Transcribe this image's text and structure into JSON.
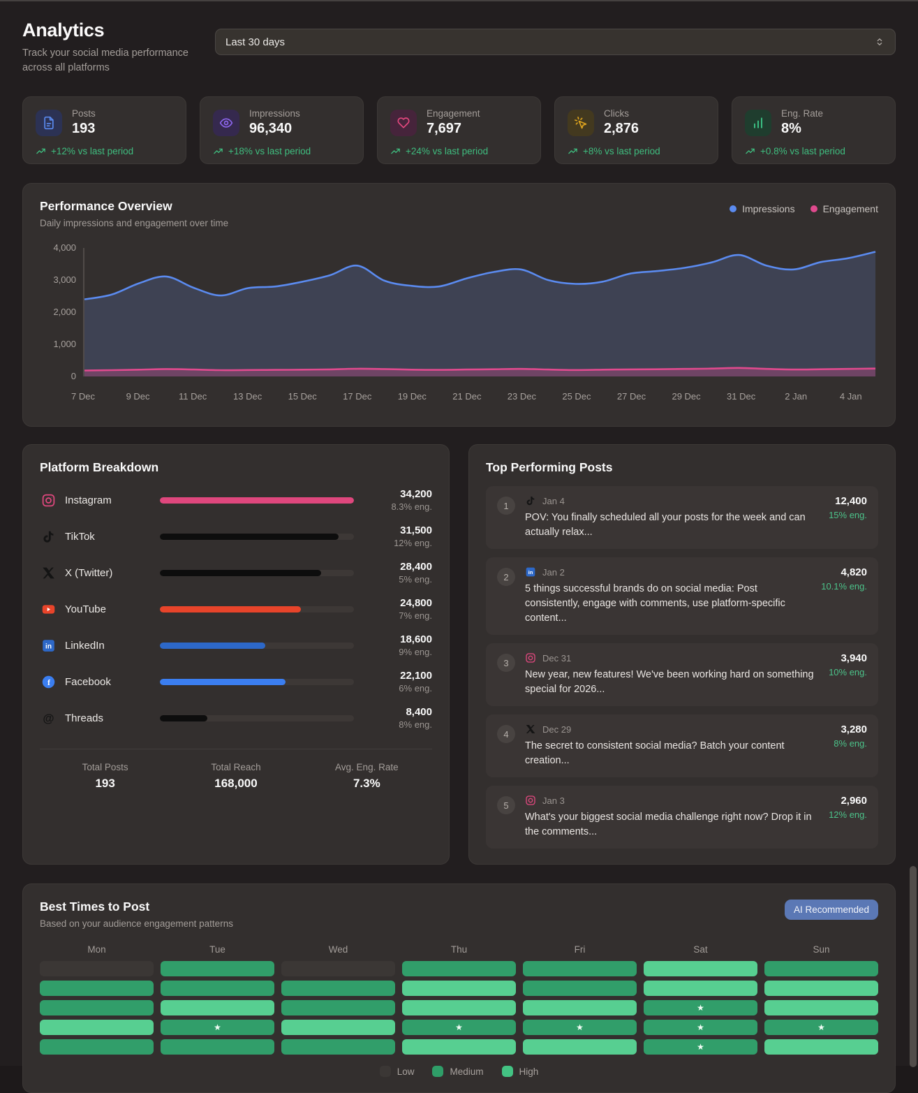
{
  "header": {
    "title": "Analytics",
    "subtitle": "Track your social media performance across all platforms",
    "range_value": "Last 30 days"
  },
  "stats": [
    {
      "label": "Posts",
      "value": "193",
      "trend": "+12% vs last period",
      "icon": "file-icon",
      "icon_color": "#5b8bf0",
      "icon_bg": "#2c3254"
    },
    {
      "label": "Impressions",
      "value": "96,340",
      "trend": "+18% vs last period",
      "icon": "eye-icon",
      "icon_color": "#8e67f0",
      "icon_bg": "#35294e"
    },
    {
      "label": "Engagement",
      "value": "7,697",
      "trend": "+24% vs last period",
      "icon": "heart-icon",
      "icon_color": "#e5487f",
      "icon_bg": "#46243b"
    },
    {
      "label": "Clicks",
      "value": "2,876",
      "trend": "+8% vs last period",
      "icon": "cursor-click-icon",
      "icon_color": "#dfa51f",
      "icon_bg": "#43391f"
    },
    {
      "label": "Eng. Rate",
      "value": "8%",
      "trend": "+0.8% vs last period",
      "icon": "bar-chart-icon",
      "icon_color": "#3bbd82",
      "icon_bg": "#1f3d2e"
    }
  ],
  "performance": {
    "title": "Performance Overview",
    "subtitle": "Daily impressions and engagement over time",
    "legend": [
      {
        "label": "Impressions",
        "color": "#5b8bf0"
      },
      {
        "label": "Engagement",
        "color": "#e04a8e"
      }
    ]
  },
  "chart_data": {
    "type": "area",
    "title": "Performance Overview",
    "x_ticks": [
      "7 Dec",
      "9 Dec",
      "11 Dec",
      "13 Dec",
      "15 Dec",
      "17 Dec",
      "19 Dec",
      "21 Dec",
      "23 Dec",
      "25 Dec",
      "27 Dec",
      "29 Dec",
      "31 Dec",
      "2 Jan",
      "4 Jan"
    ],
    "tick_every_n_points": 2,
    "y_ticks": [
      "4,000",
      "3,000",
      "2,000",
      "1,000",
      "0"
    ],
    "ylim": [
      0,
      4000
    ],
    "grid": false,
    "legend_position": "top-right",
    "series": [
      {
        "name": "Impressions",
        "color": "#5b8bf0",
        "fill": "rgba(100,130,200,0.24)",
        "values": [
          2400,
          2550,
          2900,
          3110,
          2760,
          2520,
          2750,
          2800,
          2950,
          3150,
          3450,
          2980,
          2820,
          2800,
          3050,
          3250,
          3330,
          3000,
          2880,
          2950,
          3200,
          3280,
          3380,
          3550,
          3780,
          3450,
          3330,
          3560,
          3680,
          3880
        ]
      },
      {
        "name": "Engagement",
        "color": "#e04a8e",
        "fill": "rgba(224,74,142,0.30)",
        "values": [
          185,
          195,
          210,
          230,
          215,
          195,
          200,
          205,
          210,
          220,
          240,
          230,
          210,
          205,
          215,
          225,
          235,
          215,
          200,
          210,
          220,
          225,
          235,
          245,
          265,
          235,
          215,
          225,
          235,
          245
        ]
      }
    ]
  },
  "platform_breakdown": {
    "title": "Platform Breakdown",
    "max_value": 34200,
    "rows": [
      {
        "name": "Instagram",
        "icon": "instagram-icon",
        "value": "34,200",
        "value_num": 34200,
        "eng": "8.3% eng.",
        "bar_color": "#df477d"
      },
      {
        "name": "TikTok",
        "icon": "tiktok-icon",
        "value": "31,500",
        "value_num": 31500,
        "eng": "12% eng.",
        "bar_color": "#0d0d0d"
      },
      {
        "name": "X (Twitter)",
        "icon": "x-icon",
        "value": "28,400",
        "value_num": 28400,
        "eng": "5% eng.",
        "bar_color": "#0d0d0d"
      },
      {
        "name": "YouTube",
        "icon": "youtube-icon",
        "value": "24,800",
        "value_num": 24800,
        "eng": "7% eng.",
        "bar_color": "#e8442a"
      },
      {
        "name": "LinkedIn",
        "icon": "linkedin-icon",
        "value": "18,600",
        "value_num": 18600,
        "eng": "9% eng.",
        "bar_color": "#2d68c8"
      },
      {
        "name": "Facebook",
        "icon": "facebook-icon",
        "value": "22,100",
        "value_num": 22100,
        "eng": "6% eng.",
        "bar_color": "#3b7ef0"
      },
      {
        "name": "Threads",
        "icon": "threads-icon",
        "value": "8,400",
        "value_num": 8400,
        "eng": "8% eng.",
        "bar_color": "#0d0d0d"
      }
    ],
    "totals": [
      {
        "label": "Total Posts",
        "value": "193"
      },
      {
        "label": "Total Reach",
        "value": "168,000"
      },
      {
        "label": "Avg. Eng. Rate",
        "value": "7.3%"
      }
    ]
  },
  "top_posts": {
    "title": "Top Performing Posts",
    "items": [
      {
        "rank": "1",
        "icon": "tiktok-icon",
        "date": "Jan 4",
        "text": "POV: You finally scheduled all your posts for the week and can actually relax...",
        "value": "12,400",
        "eng": "15% eng."
      },
      {
        "rank": "2",
        "icon": "linkedin-icon",
        "date": "Jan 2",
        "text": "5 things successful brands do on social media: Post consistently, engage with comments, use platform-specific content...",
        "value": "4,820",
        "eng": "10.1% eng."
      },
      {
        "rank": "3",
        "icon": "instagram-icon",
        "date": "Dec 31",
        "text": "New year, new features! We've been working hard on something special for 2026...",
        "value": "3,940",
        "eng": "10% eng."
      },
      {
        "rank": "4",
        "icon": "x-icon",
        "date": "Dec 29",
        "text": "The secret to consistent social media? Batch your content creation...",
        "value": "3,280",
        "eng": "8% eng."
      },
      {
        "rank": "5",
        "icon": "instagram-icon",
        "date": "Jan 3",
        "text": "What's your biggest social media challenge right now? Drop it in the comments...",
        "value": "2,960",
        "eng": "12% eng."
      }
    ]
  },
  "best_times": {
    "title": "Best Times to Post",
    "subtitle": "Based on your audience engagement patterns",
    "badge": "AI Recommended",
    "level_colors": {
      "low": "#3b3735",
      "medium": "#319e6a",
      "high": "#57cf91"
    },
    "days": [
      {
        "day": "Mon",
        "cells": [
          {
            "level": "low",
            "star": false
          },
          {
            "level": "medium",
            "star": false
          },
          {
            "level": "medium",
            "star": false
          },
          {
            "level": "high",
            "star": false
          },
          {
            "level": "medium",
            "star": false
          }
        ]
      },
      {
        "day": "Tue",
        "cells": [
          {
            "level": "medium",
            "star": false
          },
          {
            "level": "medium",
            "star": false
          },
          {
            "level": "high",
            "star": false
          },
          {
            "level": "medium",
            "star": true
          },
          {
            "level": "medium",
            "star": false
          }
        ]
      },
      {
        "day": "Wed",
        "cells": [
          {
            "level": "low",
            "star": false
          },
          {
            "level": "medium",
            "star": false
          },
          {
            "level": "medium",
            "star": false
          },
          {
            "level": "high",
            "star": false
          },
          {
            "level": "medium",
            "star": false
          }
        ]
      },
      {
        "day": "Thu",
        "cells": [
          {
            "level": "medium",
            "star": false
          },
          {
            "level": "high",
            "star": false
          },
          {
            "level": "high",
            "star": false
          },
          {
            "level": "medium",
            "star": true
          },
          {
            "level": "high",
            "star": false
          }
        ]
      },
      {
        "day": "Fri",
        "cells": [
          {
            "level": "medium",
            "star": false
          },
          {
            "level": "medium",
            "star": false
          },
          {
            "level": "high",
            "star": false
          },
          {
            "level": "medium",
            "star": true
          },
          {
            "level": "high",
            "star": false
          }
        ]
      },
      {
        "day": "Sat",
        "cells": [
          {
            "level": "high",
            "star": false
          },
          {
            "level": "high",
            "star": false
          },
          {
            "level": "medium",
            "star": true
          },
          {
            "level": "medium",
            "star": true
          },
          {
            "level": "medium",
            "star": true
          }
        ]
      },
      {
        "day": "Sun",
        "cells": [
          {
            "level": "medium",
            "star": false
          },
          {
            "level": "high",
            "star": false
          },
          {
            "level": "high",
            "star": false
          },
          {
            "level": "medium",
            "star": true
          },
          {
            "level": "high",
            "star": false
          }
        ]
      }
    ],
    "legend": [
      {
        "label": "Low",
        "color": "#3b3735"
      },
      {
        "label": "Medium",
        "color": "#2f9e68"
      },
      {
        "label": "High",
        "color": "#43c383"
      }
    ]
  }
}
